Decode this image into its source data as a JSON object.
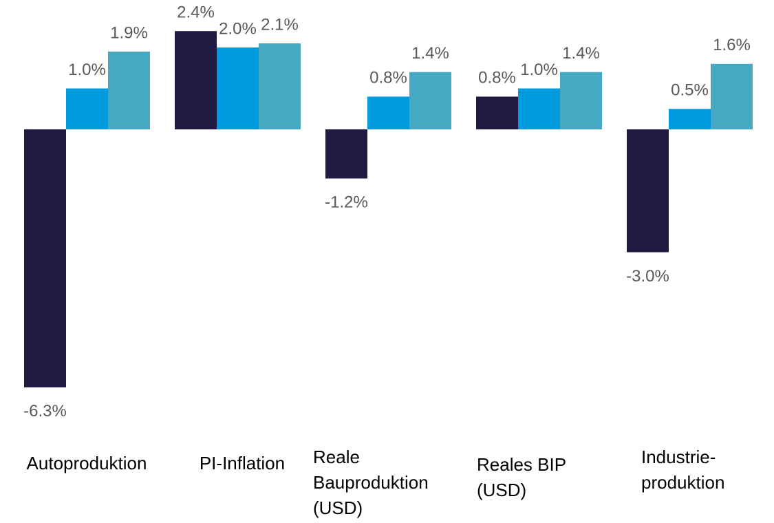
{
  "chart_data": {
    "type": "bar",
    "categories": [
      "Autoproduktion",
      "PI-Inflation",
      "Reale\nBauproduktion\n(USD)",
      "Reales BIP\n(USD)",
      "Industrie-\nproduktion"
    ],
    "series": [
      {
        "color": "#201a42",
        "values": [
          -6.3,
          2.4,
          -1.2,
          0.8,
          -3.0
        ],
        "value_labels": [
          "-6.3%",
          "2.4%",
          "-1.2%",
          "0.8%",
          "-3.0%"
        ]
      },
      {
        "color": "#009ade",
        "values": [
          1.0,
          2.0,
          0.8,
          1.0,
          0.5
        ],
        "value_labels": [
          "1.0%",
          "2.0%",
          "0.8%",
          "1.0%",
          "0.5%"
        ]
      },
      {
        "color": "#46a9c4",
        "values": [
          1.9,
          2.1,
          1.4,
          1.4,
          1.6
        ],
        "value_labels": [
          "1.9%",
          "2.1%",
          "1.4%",
          "1.4%",
          "1.6%"
        ]
      }
    ]
  }
}
